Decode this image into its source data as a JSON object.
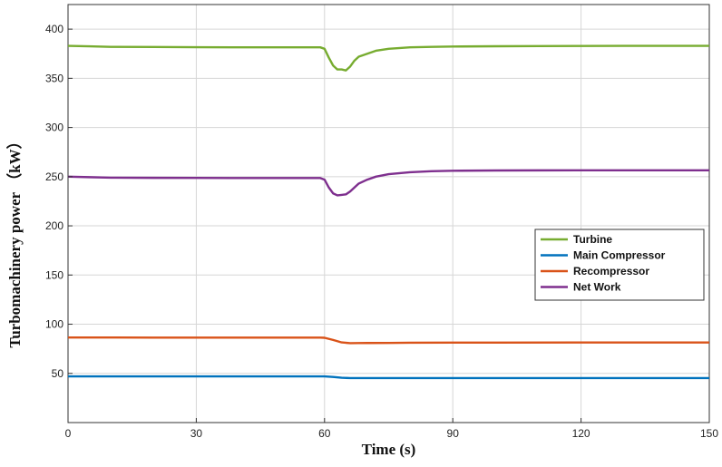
{
  "chart_data": {
    "type": "line",
    "xlabel": "Time (s)",
    "ylabel": "Turbomachinery power （kW）",
    "xlim": [
      0,
      150
    ],
    "ylim": [
      0,
      425
    ],
    "xticks": [
      0,
      30,
      60,
      90,
      120,
      150
    ],
    "yticks": [
      50,
      100,
      150,
      200,
      250,
      300,
      350,
      400
    ],
    "grid": true,
    "legend_position": "right",
    "series": [
      {
        "name": "Turbine",
        "color": "#77ac30",
        "x": [
          0,
          5,
          10,
          20,
          30,
          40,
          50,
          59,
          60,
          61,
          62,
          63,
          64,
          65,
          66,
          67,
          68,
          70,
          72,
          75,
          80,
          85,
          90,
          100,
          110,
          120,
          130,
          140,
          150
        ],
        "y": [
          383,
          382.5,
          382,
          381.8,
          381.6,
          381.5,
          381.5,
          381.5,
          380,
          371,
          363,
          359,
          359,
          358,
          362,
          368,
          372,
          375,
          378,
          380,
          381.5,
          382,
          382.3,
          382.6,
          382.8,
          382.9,
          383,
          383,
          383
        ]
      },
      {
        "name": "Main Compressor",
        "color": "#0072bd",
        "x": [
          0,
          20,
          40,
          59,
          60,
          62,
          64,
          66,
          68,
          70,
          90,
          120,
          150
        ],
        "y": [
          47,
          47,
          47,
          47,
          47,
          46.4,
          45.6,
          45.2,
          45.2,
          45.2,
          45.2,
          45.2,
          45.2
        ]
      },
      {
        "name": "Recompressor",
        "color": "#d95319",
        "x": [
          0,
          20,
          40,
          59,
          60,
          62,
          64,
          66,
          68,
          70,
          75,
          80,
          90,
          100,
          120,
          150
        ],
        "y": [
          86.5,
          86.4,
          86.4,
          86.4,
          86.2,
          84,
          81.5,
          80.7,
          80.8,
          80.9,
          81,
          81.2,
          81.3,
          81.3,
          81.4,
          81.4
        ]
      },
      {
        "name": "Net Work",
        "color": "#7e2f8e",
        "x": [
          0,
          5,
          10,
          20,
          30,
          40,
          50,
          59,
          60,
          61,
          62,
          63,
          64,
          65,
          66,
          67,
          68,
          70,
          72,
          75,
          80,
          85,
          90,
          100,
          110,
          120,
          130,
          140,
          150
        ],
        "y": [
          250,
          249.5,
          249,
          248.8,
          248.7,
          248.6,
          248.6,
          248.6,
          247,
          239,
          233,
          231,
          231.5,
          232,
          235,
          239,
          243,
          247,
          250,
          252.5,
          254.5,
          255.5,
          256,
          256.3,
          256.4,
          256.5,
          256.5,
          256.5,
          256.5
        ]
      }
    ]
  }
}
